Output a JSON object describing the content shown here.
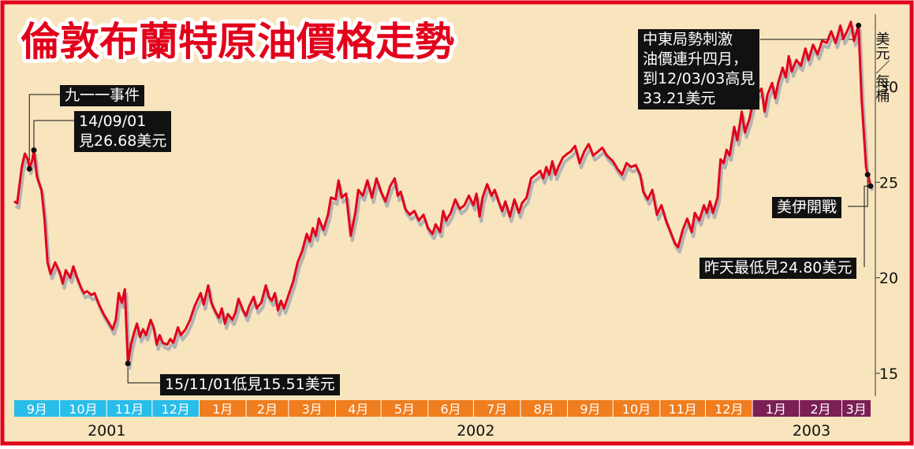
{
  "title": "倫敦布蘭特原油價格走勢",
  "colors": {
    "background": "#f8e4bd",
    "frame": "#e3001b",
    "line": "#e3001b",
    "shadow": "#b3b3b3",
    "annotation_box": "#111111",
    "annotation_text": "#ffffff",
    "month_blue": "#29bde9",
    "month_orange": "#f07d1e",
    "month_purple": "#7b1f55"
  },
  "chart_data": {
    "type": "line",
    "title": "倫敦布蘭特原油價格走勢",
    "ylabel": "美元／每桶",
    "ylim": [
      13.8,
      33.8
    ],
    "yticks": [
      15,
      20,
      25,
      30
    ],
    "grid": false,
    "x_start": "2001-09-01",
    "x_end": "2003-03-20",
    "months": [
      {
        "label": "9月",
        "year": 2001,
        "color": "blue"
      },
      {
        "label": "10月",
        "year": 2001,
        "color": "blue"
      },
      {
        "label": "11月",
        "year": 2001,
        "color": "blue"
      },
      {
        "label": "12月",
        "year": 2001,
        "color": "blue"
      },
      {
        "label": "1月",
        "year": 2002,
        "color": "orange"
      },
      {
        "label": "2月",
        "year": 2002,
        "color": "orange"
      },
      {
        "label": "3月",
        "year": 2002,
        "color": "orange"
      },
      {
        "label": "4月",
        "year": 2002,
        "color": "orange"
      },
      {
        "label": "5月",
        "year": 2002,
        "color": "orange"
      },
      {
        "label": "6月",
        "year": 2002,
        "color": "orange"
      },
      {
        "label": "7月",
        "year": 2002,
        "color": "orange"
      },
      {
        "label": "8月",
        "year": 2002,
        "color": "orange"
      },
      {
        "label": "9月",
        "year": 2002,
        "color": "orange"
      },
      {
        "label": "10月",
        "year": 2002,
        "color": "orange"
      },
      {
        "label": "11月",
        "year": 2002,
        "color": "orange"
      },
      {
        "label": "12月",
        "year": 2002,
        "color": "orange"
      },
      {
        "label": "1月",
        "year": 2003,
        "color": "purple"
      },
      {
        "label": "2月",
        "year": 2003,
        "color": "purple"
      },
      {
        "label": "3月",
        "year": 2003,
        "color": "purple"
      }
    ],
    "years": [
      "2001",
      "2002",
      "2003"
    ],
    "series": [
      {
        "points": [
          [
            "2001-09-01",
            24.0
          ],
          [
            "2001-09-03",
            23.9
          ],
          [
            "2001-09-06",
            25.8
          ],
          [
            "2001-09-08",
            26.5
          ],
          [
            "2001-09-10",
            26.2
          ],
          [
            "2001-09-11",
            25.7
          ],
          [
            "2001-09-13",
            26.2
          ],
          [
            "2001-09-14",
            26.68
          ],
          [
            "2001-09-16",
            25.3
          ],
          [
            "2001-09-19",
            24.6
          ],
          [
            "2001-09-21",
            23.1
          ],
          [
            "2001-09-23",
            20.8
          ],
          [
            "2001-09-25",
            20.2
          ],
          [
            "2001-09-28",
            20.8
          ],
          [
            "2001-10-01",
            20.3
          ],
          [
            "2001-10-03",
            19.7
          ],
          [
            "2001-10-05",
            20.4
          ],
          [
            "2001-10-08",
            20.0
          ],
          [
            "2001-10-10",
            20.6
          ],
          [
            "2001-10-12",
            20.1
          ],
          [
            "2001-10-15",
            19.5
          ],
          [
            "2001-10-17",
            19.2
          ],
          [
            "2001-10-19",
            19.3
          ],
          [
            "2001-10-22",
            19.1
          ],
          [
            "2001-10-24",
            19.2
          ],
          [
            "2001-10-27",
            18.6
          ],
          [
            "2001-10-30",
            18.1
          ],
          [
            "2001-11-02",
            17.7
          ],
          [
            "2001-11-05",
            17.3
          ],
          [
            "2001-11-07",
            17.8
          ],
          [
            "2001-11-09",
            19.2
          ],
          [
            "2001-11-11",
            18.7
          ],
          [
            "2001-11-13",
            19.4
          ],
          [
            "2001-11-15",
            15.51
          ],
          [
            "2001-11-17",
            16.5
          ],
          [
            "2001-11-19",
            17.1
          ],
          [
            "2001-11-21",
            17.6
          ],
          [
            "2001-11-23",
            16.9
          ],
          [
            "2001-11-25",
            17.3
          ],
          [
            "2001-11-27",
            17.0
          ],
          [
            "2001-11-30",
            17.8
          ],
          [
            "2001-12-02",
            17.4
          ],
          [
            "2001-12-04",
            16.5
          ],
          [
            "2001-12-06",
            17.0
          ],
          [
            "2001-12-08",
            16.6
          ],
          [
            "2001-12-11",
            16.5
          ],
          [
            "2001-12-13",
            16.8
          ],
          [
            "2001-12-15",
            16.6
          ],
          [
            "2001-12-18",
            17.4
          ],
          [
            "2001-12-20",
            17.0
          ],
          [
            "2001-12-23",
            17.3
          ],
          [
            "2001-12-26",
            17.8
          ],
          [
            "2001-12-29",
            18.5
          ],
          [
            "2002-01-02",
            19.2
          ],
          [
            "2002-01-04",
            18.6
          ],
          [
            "2002-01-07",
            19.6
          ],
          [
            "2002-01-09",
            18.7
          ],
          [
            "2002-01-12",
            18.2
          ],
          [
            "2002-01-14",
            17.9
          ],
          [
            "2002-01-16",
            18.4
          ],
          [
            "2002-01-18",
            17.6
          ],
          [
            "2002-01-20",
            18.1
          ],
          [
            "2002-01-23",
            17.8
          ],
          [
            "2002-01-25",
            18.2
          ],
          [
            "2002-01-27",
            18.9
          ],
          [
            "2002-01-30",
            18.3
          ],
          [
            "2002-02-01",
            18.0
          ],
          [
            "2002-02-03",
            18.5
          ],
          [
            "2002-02-06",
            19.0
          ],
          [
            "2002-02-08",
            18.4
          ],
          [
            "2002-02-11",
            18.7
          ],
          [
            "2002-02-14",
            19.6
          ],
          [
            "2002-02-16",
            19.0
          ],
          [
            "2002-02-18",
            18.8
          ],
          [
            "2002-02-20",
            19.2
          ],
          [
            "2002-02-22",
            18.3
          ],
          [
            "2002-02-24",
            18.8
          ],
          [
            "2002-02-26",
            18.4
          ],
          [
            "2002-03-01",
            19.1
          ],
          [
            "2002-03-04",
            19.8
          ],
          [
            "2002-03-07",
            20.8
          ],
          [
            "2002-03-10",
            21.4
          ],
          [
            "2002-03-13",
            22.3
          ],
          [
            "2002-03-15",
            21.9
          ],
          [
            "2002-03-17",
            22.6
          ],
          [
            "2002-03-19",
            22.2
          ],
          [
            "2002-03-21",
            23.1
          ],
          [
            "2002-03-24",
            22.5
          ],
          [
            "2002-03-27",
            23.3
          ],
          [
            "2002-03-29",
            24.2
          ],
          [
            "2002-04-01",
            24.1
          ],
          [
            "2002-04-03",
            25.1
          ],
          [
            "2002-04-05",
            24.2
          ],
          [
            "2002-04-08",
            24.4
          ],
          [
            "2002-04-11",
            22.2
          ],
          [
            "2002-04-14",
            23.4
          ],
          [
            "2002-04-16",
            24.6
          ],
          [
            "2002-04-19",
            24.3
          ],
          [
            "2002-04-22",
            25.1
          ],
          [
            "2002-04-25",
            24.2
          ],
          [
            "2002-04-28",
            25.2
          ],
          [
            "2002-05-01",
            24.5
          ],
          [
            "2002-05-04",
            24.0
          ],
          [
            "2002-05-07",
            24.8
          ],
          [
            "2002-05-10",
            25.2
          ],
          [
            "2002-05-12",
            24.3
          ],
          [
            "2002-05-14",
            24.5
          ],
          [
            "2002-05-17",
            23.6
          ],
          [
            "2002-05-20",
            23.3
          ],
          [
            "2002-05-23",
            23.5
          ],
          [
            "2002-05-26",
            23.0
          ],
          [
            "2002-05-29",
            23.3
          ],
          [
            "2002-06-01",
            22.6
          ],
          [
            "2002-06-04",
            22.3
          ],
          [
            "2002-06-06",
            22.8
          ],
          [
            "2002-06-09",
            22.4
          ],
          [
            "2002-06-11",
            23.5
          ],
          [
            "2002-06-13",
            23.0
          ],
          [
            "2002-06-16",
            23.4
          ],
          [
            "2002-06-19",
            24.1
          ],
          [
            "2002-06-22",
            23.6
          ],
          [
            "2002-06-25",
            23.8
          ],
          [
            "2002-06-28",
            24.3
          ],
          [
            "2002-07-01",
            23.8
          ],
          [
            "2002-07-03",
            24.4
          ],
          [
            "2002-07-05",
            23.2
          ],
          [
            "2002-07-07",
            24.2
          ],
          [
            "2002-07-10",
            24.9
          ],
          [
            "2002-07-13",
            24.3
          ],
          [
            "2002-07-15",
            24.6
          ],
          [
            "2002-07-18",
            23.9
          ],
          [
            "2002-07-20",
            23.5
          ],
          [
            "2002-07-22",
            24.0
          ],
          [
            "2002-07-25",
            23.2
          ],
          [
            "2002-07-28",
            24.1
          ],
          [
            "2002-07-31",
            23.4
          ],
          [
            "2002-08-02",
            23.9
          ],
          [
            "2002-08-05",
            24.2
          ],
          [
            "2002-08-08",
            25.2
          ],
          [
            "2002-08-11",
            25.4
          ],
          [
            "2002-08-14",
            25.6
          ],
          [
            "2002-08-16",
            25.2
          ],
          [
            "2002-08-18",
            25.8
          ],
          [
            "2002-08-20",
            25.4
          ],
          [
            "2002-08-22",
            26.1
          ],
          [
            "2002-08-24",
            25.4
          ],
          [
            "2002-08-26",
            25.8
          ],
          [
            "2002-08-29",
            26.3
          ],
          [
            "2002-09-01",
            26.5
          ],
          [
            "2002-09-03",
            26.6
          ],
          [
            "2002-09-06",
            26.9
          ],
          [
            "2002-09-09",
            26.0
          ],
          [
            "2002-09-12",
            26.6
          ],
          [
            "2002-09-15",
            27.0
          ],
          [
            "2002-09-18",
            26.4
          ],
          [
            "2002-09-21",
            26.6
          ],
          [
            "2002-09-24",
            26.8
          ],
          [
            "2002-09-27",
            26.4
          ],
          [
            "2002-10-01",
            26.1
          ],
          [
            "2002-10-04",
            25.7
          ],
          [
            "2002-10-07",
            25.4
          ],
          [
            "2002-10-10",
            26.0
          ],
          [
            "2002-10-13",
            25.8
          ],
          [
            "2002-10-16",
            25.9
          ],
          [
            "2002-10-19",
            25.4
          ],
          [
            "2002-10-21",
            24.5
          ],
          [
            "2002-10-24",
            24.1
          ],
          [
            "2002-10-27",
            24.6
          ],
          [
            "2002-10-30",
            23.3
          ],
          [
            "2002-11-02",
            23.8
          ],
          [
            "2002-11-05",
            23.0
          ],
          [
            "2002-11-08",
            22.4
          ],
          [
            "2002-11-11",
            21.8
          ],
          [
            "2002-11-13",
            21.6
          ],
          [
            "2002-11-16",
            22.5
          ],
          [
            "2002-11-19",
            23.1
          ],
          [
            "2002-11-22",
            22.4
          ],
          [
            "2002-11-24",
            23.4
          ],
          [
            "2002-11-27",
            23.0
          ],
          [
            "2002-11-30",
            23.8
          ],
          [
            "2002-12-02",
            23.4
          ],
          [
            "2002-12-04",
            24.0
          ],
          [
            "2002-12-06",
            23.4
          ],
          [
            "2002-12-09",
            24.2
          ],
          [
            "2002-12-11",
            26.2
          ],
          [
            "2002-12-13",
            26.0
          ],
          [
            "2002-12-15",
            26.7
          ],
          [
            "2002-12-17",
            26.4
          ],
          [
            "2002-12-20",
            27.9
          ],
          [
            "2002-12-22",
            27.2
          ],
          [
            "2002-12-25",
            28.7
          ],
          [
            "2002-12-27",
            27.6
          ],
          [
            "2002-12-30",
            28.3
          ],
          [
            "2003-01-02",
            29.4
          ],
          [
            "2003-01-05",
            29.7
          ],
          [
            "2003-01-07",
            29.9
          ],
          [
            "2003-01-09",
            28.7
          ],
          [
            "2003-01-11",
            29.6
          ],
          [
            "2003-01-14",
            30.2
          ],
          [
            "2003-01-16",
            29.4
          ],
          [
            "2003-01-18",
            30.2
          ],
          [
            "2003-01-21",
            31.0
          ],
          [
            "2003-01-23",
            30.5
          ],
          [
            "2003-01-25",
            31.6
          ],
          [
            "2003-01-27",
            30.8
          ],
          [
            "2003-01-30",
            31.4
          ],
          [
            "2003-02-02",
            31.1
          ],
          [
            "2003-02-05",
            32.0
          ],
          [
            "2003-02-07",
            31.4
          ],
          [
            "2003-02-10",
            32.2
          ],
          [
            "2003-02-13",
            31.7
          ],
          [
            "2003-02-16",
            32.4
          ],
          [
            "2003-02-19",
            32.3
          ],
          [
            "2003-02-22",
            32.9
          ],
          [
            "2003-02-25",
            32.3
          ],
          [
            "2003-02-28",
            33.2
          ],
          [
            "2003-03-02",
            32.5
          ],
          [
            "2003-03-05",
            33.0
          ],
          [
            "2003-03-07",
            33.4
          ],
          [
            "2003-03-09",
            32.4
          ],
          [
            "2003-03-12",
            33.21
          ],
          [
            "2003-03-14",
            29.4
          ],
          [
            "2003-03-17",
            25.8
          ],
          [
            "2003-03-18",
            25.4
          ],
          [
            "2003-03-20",
            24.8
          ]
        ]
      }
    ],
    "annotations": [
      {
        "text": "九一一事件",
        "x": "2001-09-11",
        "y": 25.7
      },
      {
        "text": "14/09/01\n見26.68美元",
        "x": "2001-09-14",
        "y": 26.68
      },
      {
        "text": "15/11/01低見15.51美元",
        "x": "2001-11-15",
        "y": 15.51
      },
      {
        "text": "中東局勢刺激\n油價連升四月，\n到12/03/03高見\n33.21美元",
        "x": "2003-03-12",
        "y": 33.21
      },
      {
        "text": "美伊開戰",
        "x": "2003-03-18",
        "y": 25.4
      },
      {
        "text": "昨天最低見24.80美元",
        "x": "2003-03-20",
        "y": 24.8
      }
    ]
  }
}
